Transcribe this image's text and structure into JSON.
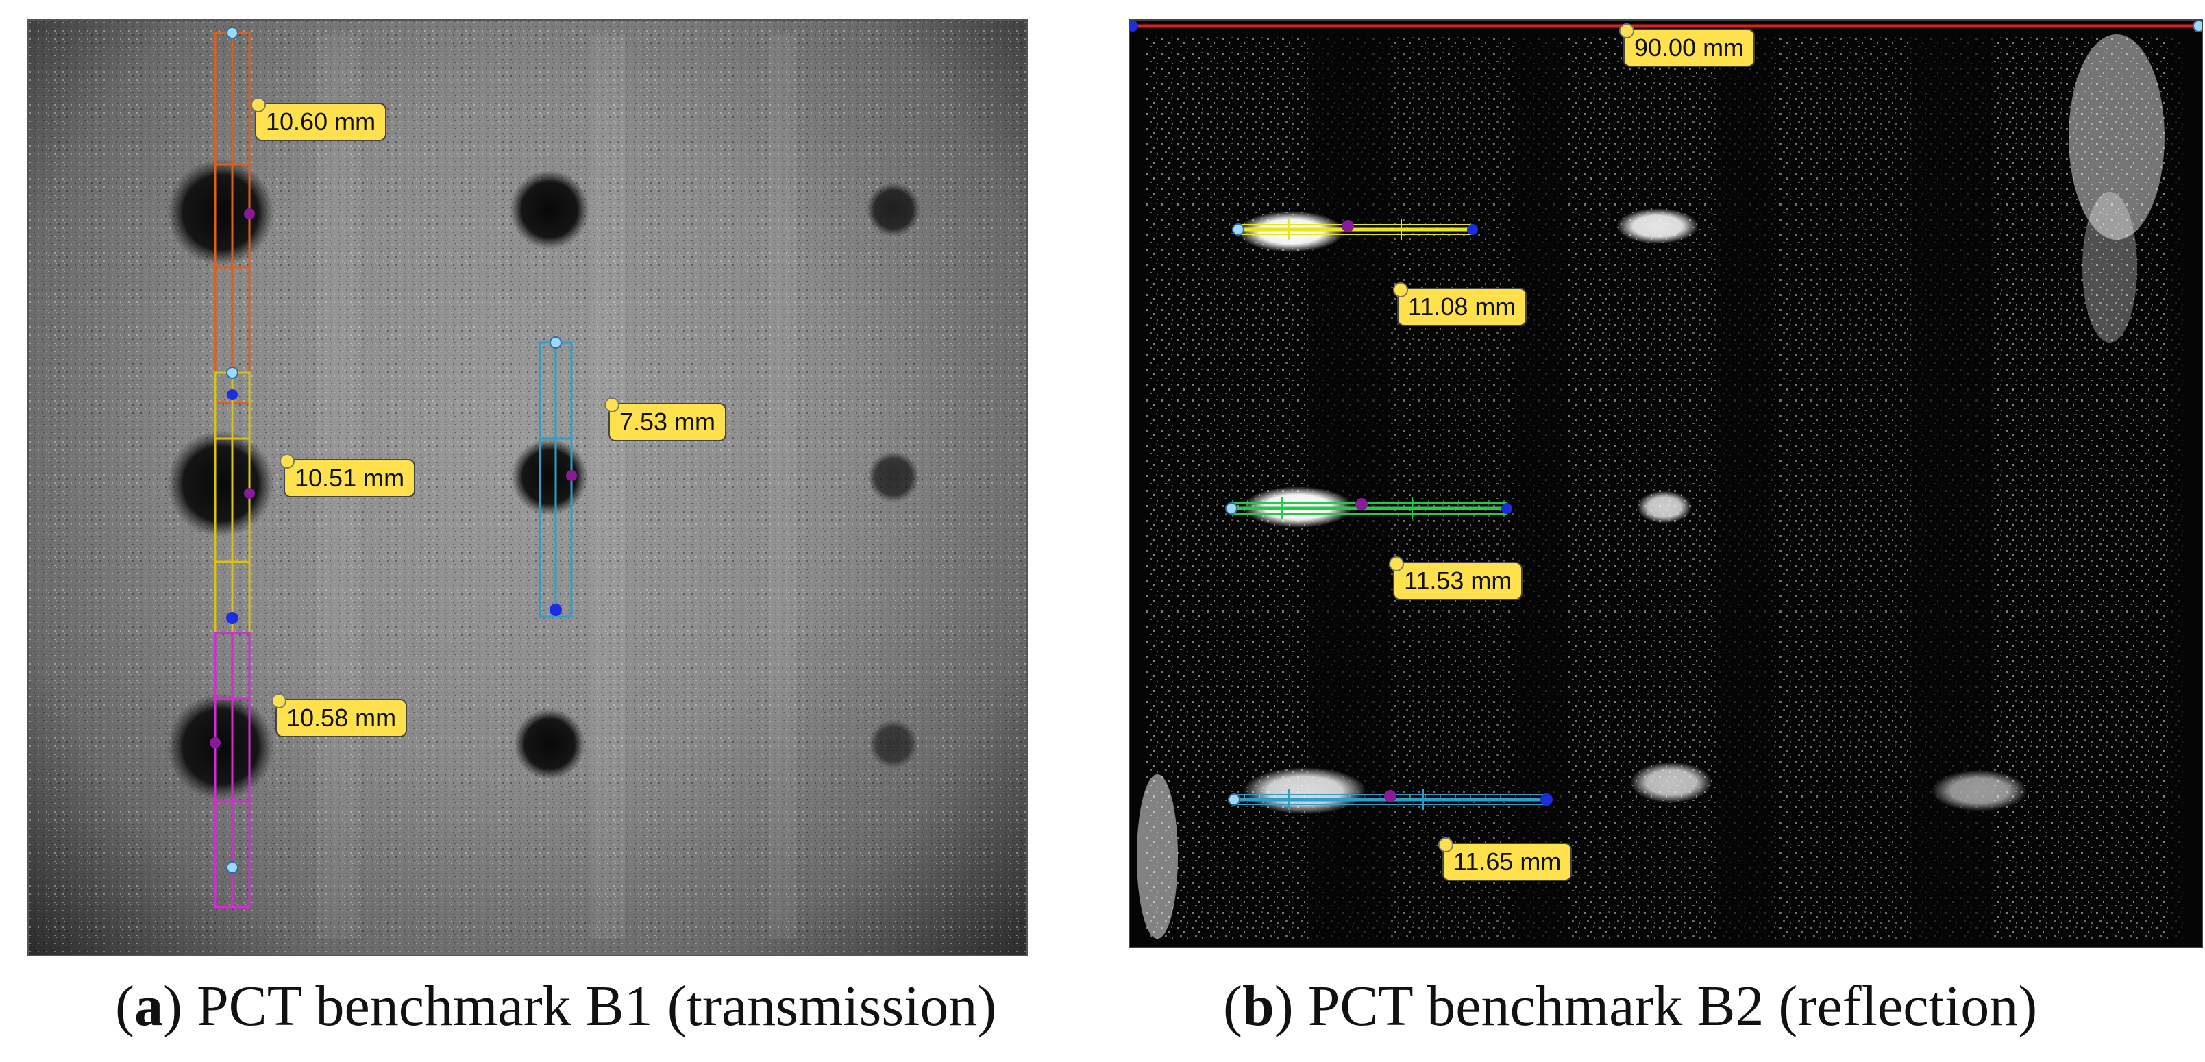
{
  "panel_a": {
    "measurements": [
      {
        "label": "10.60 mm",
        "color": "#e0601a"
      },
      {
        "label": "10.51 mm",
        "color": "#d9c21a"
      },
      {
        "label": "10.58 mm",
        "color": "#d62ad6"
      },
      {
        "label": "7.53 mm",
        "color": "#2a9fc9"
      }
    ],
    "caption": {
      "letter": "a",
      "text": " PCT benchmark B1 (transmission)"
    }
  },
  "panel_b": {
    "measurements": [
      {
        "label": "90.00 mm",
        "color": "#e02020"
      },
      {
        "label": "11.08 mm",
        "color": "#e6e61a"
      },
      {
        "label": "11.53 mm",
        "color": "#22cc44"
      },
      {
        "label": "11.65 mm",
        "color": "#2a9fc9"
      }
    ],
    "caption": {
      "letter": "b",
      "text": " PCT benchmark B2 (reflection)"
    }
  }
}
